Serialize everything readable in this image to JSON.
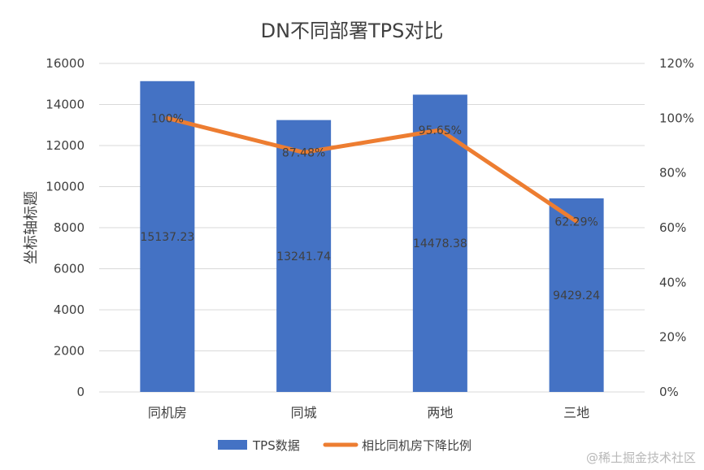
{
  "chart_data": {
    "type": "bar",
    "title": "DN不同部署TPS对比",
    "categories": [
      "同机房",
      "同城",
      "两地",
      "三地"
    ],
    "ylabel": "坐标轴标题",
    "ylim": [
      0,
      16000
    ],
    "y_ticks": [
      "0",
      "2000",
      "4000",
      "6000",
      "8000",
      "10000",
      "12000",
      "14000",
      "16000"
    ],
    "y2lim": [
      0,
      120
    ],
    "y2_ticks": [
      "0%",
      "20%",
      "40%",
      "60%",
      "80%",
      "100%",
      "120%"
    ],
    "grid": true,
    "legend_position": "bottom",
    "series": [
      {
        "name": "TPS数据",
        "type": "bar",
        "axis": "left",
        "color": "#4472C4",
        "values": [
          15137.23,
          13241.74,
          14478.38,
          9429.24
        ],
        "labels": [
          "15137.23",
          "13241.74",
          "14478.38",
          "9429.24"
        ]
      },
      {
        "name": "相比同机房下降比例",
        "type": "line",
        "axis": "right",
        "color": "#ED7D31",
        "values": [
          100,
          87.48,
          95.65,
          62.29
        ],
        "labels": [
          "100%",
          "87.48%",
          "95.65%",
          "62.29%"
        ]
      }
    ]
  },
  "watermark": "@稀土掘金技术社区"
}
